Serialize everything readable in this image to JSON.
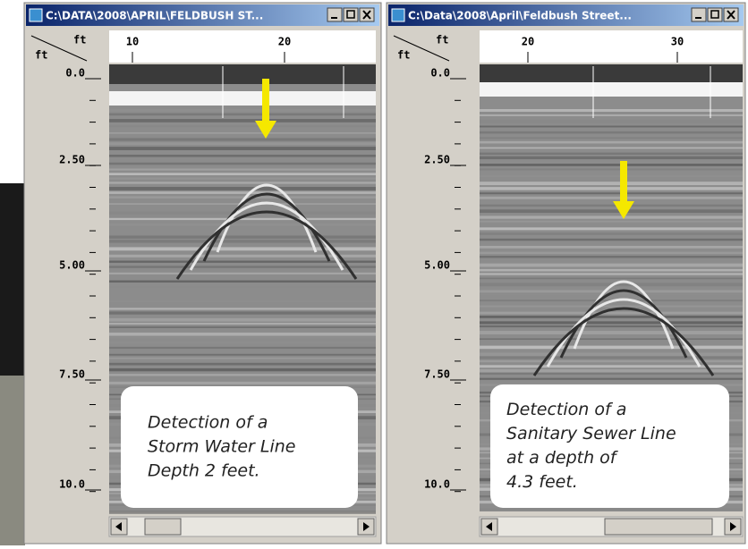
{
  "windows": [
    {
      "title": "C:\\DATA\\2008\\APRIL\\FELDBUSH ST...",
      "corner": [
        "ft",
        "ft"
      ],
      "x_ruler": [
        "10",
        "20"
      ],
      "depth_labels": [
        "0.0",
        "2.50",
        "5.00",
        "7.50",
        "10.0"
      ],
      "caption": [
        "Detection of a",
        "Storm Water Line",
        "Depth 2 feet."
      ]
    },
    {
      "title": "C:\\Data\\2008\\April\\Feldbush Street...",
      "corner": [
        "ft",
        "ft"
      ],
      "x_ruler": [
        "20",
        "30"
      ],
      "depth_labels": [
        "0.0",
        "2.50",
        "5.00",
        "7.50",
        "10.0"
      ],
      "caption": [
        "Detection of a",
        "Sanitary Sewer Line",
        "at a depth of",
        "4.3 feet."
      ]
    }
  ]
}
